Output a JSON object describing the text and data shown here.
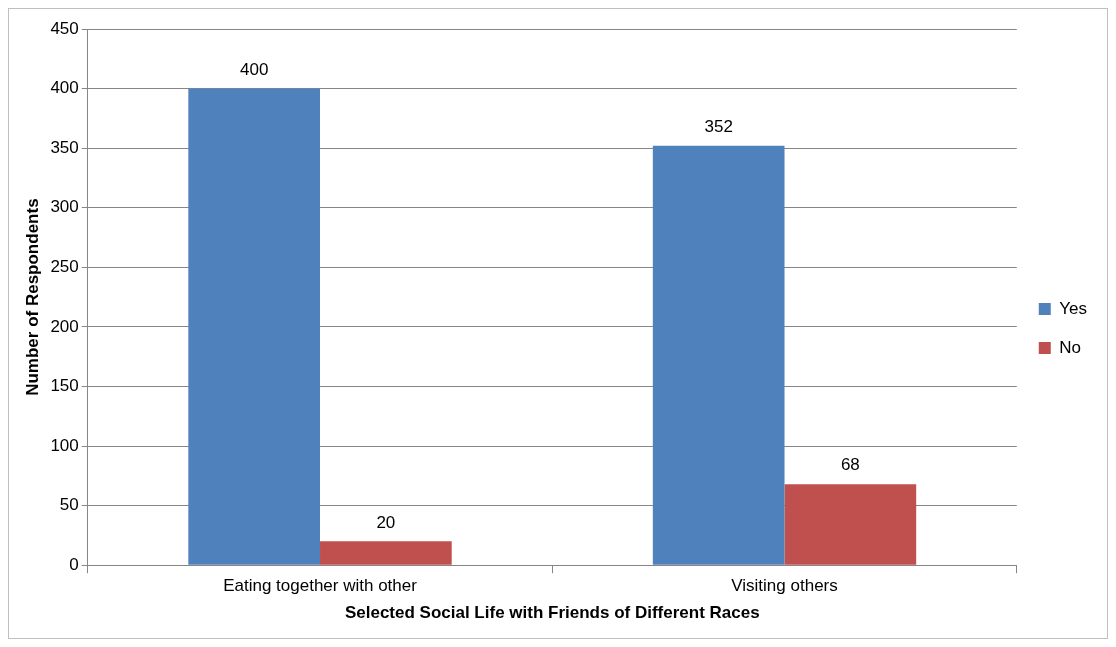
{
  "chart_data": {
    "type": "bar",
    "xlabel": "Selected Social Life with Friends of Different Races",
    "ylabel": "Number of Respondents",
    "categories": [
      "Eating together with other",
      "Visiting others"
    ],
    "series": [
      {
        "name": "Yes",
        "color": "#4f81bd",
        "values": [
          400,
          352
        ]
      },
      {
        "name": "No",
        "color": "#c0504d",
        "values": [
          20,
          68
        ]
      }
    ],
    "ylim": [
      0,
      450
    ],
    "yticks": [
      0,
      50,
      100,
      150,
      200,
      250,
      300,
      350,
      400,
      450
    ],
    "grid": "y",
    "legend": "right",
    "data_labels": true
  }
}
